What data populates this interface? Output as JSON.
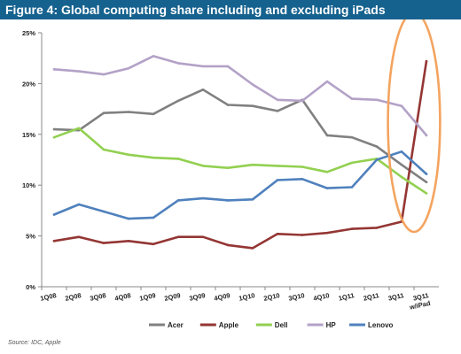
{
  "source_note": "Source: IDC, Apple",
  "chart_data": {
    "type": "line",
    "title": "Figure 4: Global computing share including and excluding iPads",
    "xlabel": "",
    "ylabel": "",
    "categories": [
      "1Q08",
      "2Q08",
      "3Q08",
      "4Q08",
      "1Q09",
      "2Q09",
      "3Q09",
      "4Q09",
      "1Q10",
      "2Q10",
      "3Q10",
      "4Q10",
      "1Q11",
      "2Q11",
      "3Q11",
      "3Q11\nw/iPad"
    ],
    "y_ticks": [
      "0%",
      "5%",
      "10%",
      "15%",
      "20%",
      "25%"
    ],
    "ylim": [
      0,
      25
    ],
    "grid": false,
    "legend_position": "bottom",
    "highlight": "orange ellipse around 3Q11 and 3Q11 w/iPad",
    "series": [
      {
        "name": "Acer",
        "color": "#808080",
        "values": [
          15.5,
          15.4,
          17.1,
          17.2,
          17.0,
          18.3,
          19.4,
          17.9,
          17.8,
          17.3,
          18.4,
          14.9,
          14.7,
          13.8,
          12.0,
          10.3
        ]
      },
      {
        "name": "Apple",
        "color": "#943634",
        "values": [
          4.5,
          4.9,
          4.3,
          4.5,
          4.2,
          4.9,
          4.9,
          4.1,
          3.8,
          5.2,
          5.1,
          5.3,
          5.7,
          5.8,
          6.4,
          22.2
        ]
      },
      {
        "name": "Dell",
        "color": "#92d050",
        "values": [
          14.7,
          15.6,
          13.5,
          13.0,
          12.7,
          12.6,
          11.9,
          11.7,
          12.0,
          11.9,
          11.8,
          11.3,
          12.2,
          12.6,
          10.8,
          9.2
        ]
      },
      {
        "name": "HP",
        "color": "#b3a2c7",
        "values": [
          21.4,
          21.2,
          20.9,
          21.5,
          22.7,
          22.0,
          21.7,
          21.7,
          19.9,
          18.4,
          18.3,
          20.2,
          18.5,
          18.4,
          17.8,
          14.9
        ]
      },
      {
        "name": "Lenovo",
        "color": "#4f81bd",
        "values": [
          7.1,
          8.1,
          7.4,
          6.7,
          6.8,
          8.5,
          8.7,
          8.5,
          8.6,
          10.5,
          10.6,
          9.7,
          9.8,
          12.5,
          13.3,
          11.1
        ]
      }
    ]
  }
}
